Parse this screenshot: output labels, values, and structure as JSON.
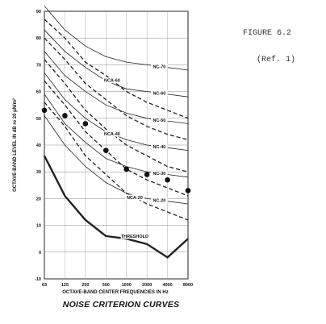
{
  "side_text": {
    "figure": "FIGURE 6.2",
    "reference": "(Ref. 1)"
  },
  "chart_data": {
    "type": "line",
    "title": "NOISE CRITERION CURVES",
    "xlabel": "OCTAVE-BAND CENTER FREQUENCIES IN Hz",
    "ylabel": "OCTAVE-BAND LEVEL IN dB re 20 µN/m²",
    "categories": [
      "63",
      "125",
      "250",
      "500",
      "1000",
      "2000",
      "4000",
      "8000"
    ],
    "ylim": [
      -10,
      90
    ],
    "y_ticks": [
      -10,
      0,
      10,
      20,
      30,
      40,
      50,
      60,
      70,
      80,
      90
    ],
    "grid": true,
    "series": [
      {
        "name": "NC-70",
        "style": "solid",
        "label_at": 5.6,
        "values": [
          92,
          83,
          77,
          73,
          71,
          70,
          69,
          68
        ]
      },
      {
        "name": "NC-60",
        "style": "solid",
        "label_at": 5.6,
        "values": [
          83,
          75,
          69,
          64,
          61,
          60,
          59,
          58
        ]
      },
      {
        "name": "NC-50",
        "style": "solid",
        "label_at": 5.6,
        "values": [
          75,
          66,
          60,
          55,
          52,
          50,
          49,
          48
        ]
      },
      {
        "name": "NC-40",
        "style": "solid",
        "label_at": 5.6,
        "values": [
          67,
          57,
          50,
          45,
          42,
          40,
          39,
          38
        ]
      },
      {
        "name": "NC-30",
        "style": "solid",
        "label_at": 5.6,
        "values": [
          59,
          48,
          41,
          35,
          32,
          30,
          29,
          28
        ]
      },
      {
        "name": "NC-20",
        "style": "solid",
        "label_at": 5.6,
        "values": [
          51,
          40,
          32,
          26,
          22,
          20,
          19,
          18
        ]
      },
      {
        "name": "NCA-60",
        "style": "dashed",
        "label_at": 3.3,
        "values": [
          87,
          80,
          71,
          66,
          60,
          56,
          53,
          50
        ]
      },
      {
        "name": "NCA-40",
        "style": "dashed",
        "label_at": 3.3,
        "values": [
          72,
          63,
          53,
          46,
          40,
          36,
          32,
          30
        ]
      },
      {
        "name": "NCA-20",
        "style": "dashed",
        "label_at": 4.4,
        "values": [
          56,
          47,
          36,
          29,
          22,
          18,
          15,
          12
        ]
      },
      {
        "name": "THRESHOLD",
        "style": "thick",
        "label_at": 4.4,
        "values": [
          36,
          21,
          12,
          6,
          5,
          3,
          -2,
          5
        ]
      }
    ],
    "measured_points": [
      {
        "x": "63",
        "y": 53
      },
      {
        "x": "125",
        "y": 51
      },
      {
        "x": "250",
        "y": 48
      },
      {
        "x": "500",
        "y": 38
      },
      {
        "x": "1000",
        "y": 31
      },
      {
        "x": "2000",
        "y": 29
      },
      {
        "x": "4000",
        "y": 27
      },
      {
        "x": "8000",
        "y": 23
      }
    ],
    "extra_dashed_curves": [
      {
        "values": [
          80,
          72,
          63,
          57,
          51,
          47,
          44,
          42
        ]
      },
      {
        "values": [
          64,
          55,
          45,
          38,
          31,
          27,
          24,
          21
        ]
      }
    ]
  }
}
